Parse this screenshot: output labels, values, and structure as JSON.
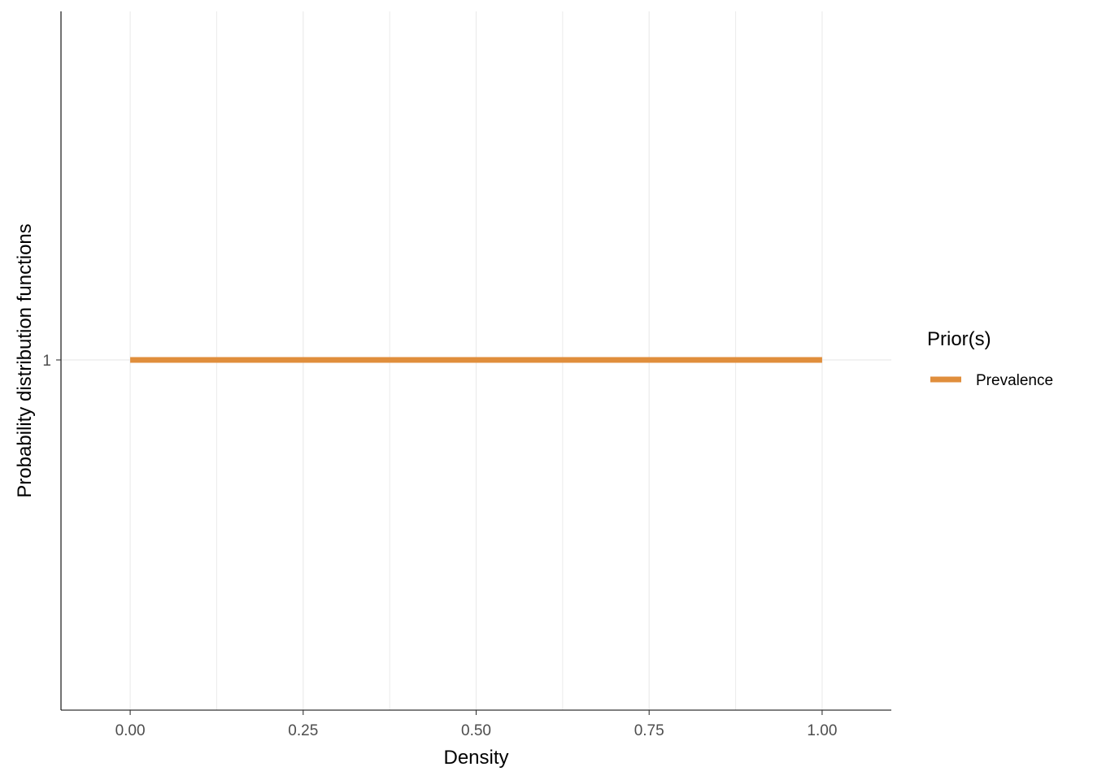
{
  "chart_data": {
    "type": "line",
    "title": "",
    "xlabel": "Density",
    "ylabel": "Probability distribution functions",
    "xlim": [
      -0.1,
      1.1
    ],
    "x_ticks": [
      0.0,
      0.25,
      0.5,
      0.75,
      1.0
    ],
    "x_tick_labels": [
      "0.00",
      "0.25",
      "0.50",
      "0.75",
      "1.00"
    ],
    "y_ticks": [
      1
    ],
    "y_tick_labels": [
      "1"
    ],
    "grid": true,
    "legend_position": "right",
    "legend_title": "Prior(s)",
    "series": [
      {
        "name": "Prevalence",
        "color": "#E08E3C",
        "x": [
          0.0,
          1.0
        ],
        "y": [
          1,
          1
        ]
      }
    ]
  }
}
